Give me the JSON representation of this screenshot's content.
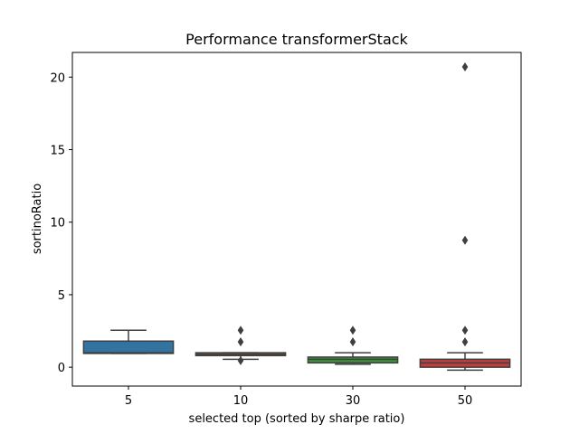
{
  "chart_data": {
    "type": "box",
    "title": "Performance transformerStack",
    "xlabel": "selected top (sorted by sharpe ratio)",
    "ylabel": "sortinoRatio",
    "categories": [
      "5",
      "10",
      "30",
      "50"
    ],
    "ylim": [
      -1.3,
      21.7
    ],
    "yticks": [
      0,
      5,
      10,
      15,
      20
    ],
    "grid": false,
    "boxes": [
      {
        "category": "5",
        "color": "#3274a1",
        "whisker_low": 0.95,
        "q1": 0.95,
        "median": 1.0,
        "q3": 1.8,
        "whisker_high": 2.55,
        "outliers": []
      },
      {
        "category": "10",
        "color": "#e1812c",
        "whisker_low": 0.55,
        "q1": 0.8,
        "median": 0.9,
        "q3": 1.0,
        "whisker_high": 1.0,
        "outliers": [
          2.55,
          1.75,
          0.45
        ]
      },
      {
        "category": "30",
        "color": "#3a923a",
        "whisker_low": 0.2,
        "q1": 0.3,
        "median": 0.55,
        "q3": 0.7,
        "whisker_high": 1.0,
        "outliers": [
          2.55,
          1.75
        ]
      },
      {
        "category": "50",
        "color": "#c03d3e",
        "whisker_low": -0.2,
        "q1": 0.0,
        "median": 0.3,
        "q3": 0.55,
        "whisker_high": 1.0,
        "outliers": [
          20.7,
          8.75,
          2.55,
          1.75
        ]
      }
    ]
  }
}
